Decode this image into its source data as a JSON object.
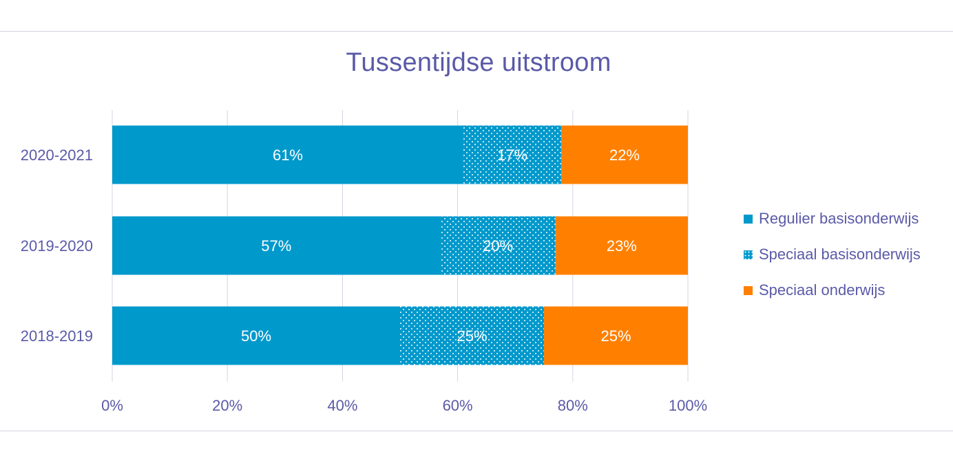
{
  "chart_data": {
    "type": "bar",
    "orientation": "horizontal",
    "stacked": true,
    "normalized": true,
    "title": "Tussentijdse uitstroom",
    "categories": [
      "2020-2021",
      "2019-2020",
      "2018-2019"
    ],
    "series": [
      {
        "name": "Regulier basisonderwijs",
        "values": [
          61,
          57,
          50
        ],
        "labels": [
          "61%",
          "57%",
          "50%"
        ],
        "color": "#0099cc",
        "pattern": "solid"
      },
      {
        "name": "Speciaal basisonderwijs",
        "values": [
          17,
          20,
          25
        ],
        "labels": [
          "17%",
          "20%",
          "25%"
        ],
        "color": "#0099cc",
        "pattern": "dotted"
      },
      {
        "name": "Speciaal onderwijs",
        "values": [
          22,
          23,
          25
        ],
        "labels": [
          "22%",
          "23%",
          "25%"
        ],
        "color": "#ff8000",
        "pattern": "solid"
      }
    ],
    "xlim": [
      0,
      100
    ],
    "xticks": [
      "0%",
      "20%",
      "40%",
      "60%",
      "80%",
      "100%"
    ],
    "grid": true,
    "legend": "right",
    "colors": {
      "text": "#5a5aa8",
      "grid": "#d4d4e0",
      "data_label": "#ffffff"
    }
  }
}
